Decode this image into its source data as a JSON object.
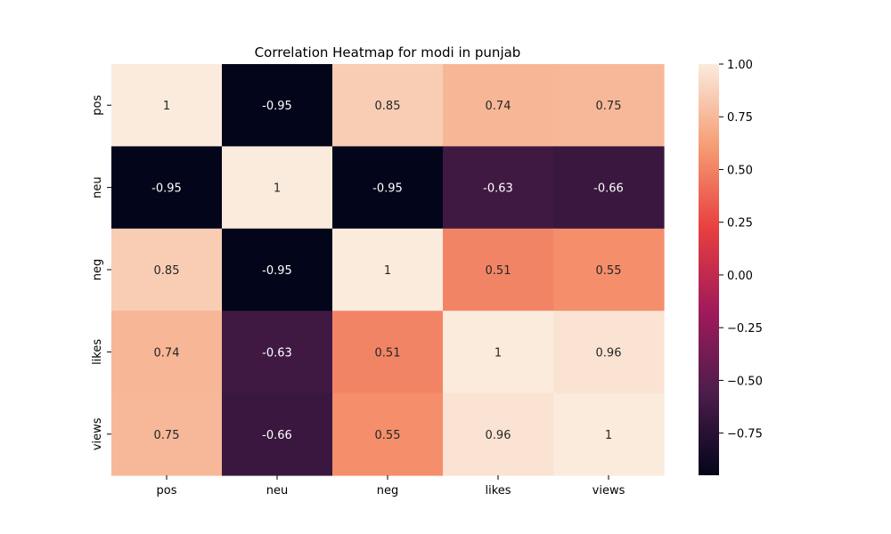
{
  "chart_data": {
    "type": "heatmap",
    "title": "Correlation Heatmap for modi in punjab",
    "x_labels": [
      "pos",
      "neu",
      "neg",
      "likes",
      "views"
    ],
    "y_labels": [
      "pos",
      "neu",
      "neg",
      "likes",
      "views"
    ],
    "values": [
      [
        1,
        -0.95,
        0.85,
        0.74,
        0.75
      ],
      [
        -0.95,
        1,
        -0.95,
        -0.63,
        -0.66
      ],
      [
        0.85,
        -0.95,
        1,
        0.51,
        0.55
      ],
      [
        0.74,
        -0.63,
        0.51,
        1,
        0.96
      ],
      [
        0.75,
        -0.66,
        0.55,
        0.96,
        1
      ]
    ],
    "cell_labels": [
      [
        "1",
        "-0.95",
        "0.85",
        "0.74",
        "0.75"
      ],
      [
        "-0.95",
        "1",
        "-0.95",
        "-0.63",
        "-0.66"
      ],
      [
        "0.85",
        "-0.95",
        "1",
        "0.51",
        "0.55"
      ],
      [
        "0.74",
        "-0.63",
        "0.51",
        "1",
        "0.96"
      ],
      [
        "0.75",
        "-0.66",
        "0.55",
        "0.96",
        "1"
      ]
    ],
    "colorbar": {
      "range": [
        -0.95,
        1.0
      ],
      "ticks": [
        1.0,
        0.75,
        0.5,
        0.25,
        0.0,
        -0.25,
        -0.5,
        -0.75
      ],
      "tick_labels": [
        "1.00",
        "0.75",
        "0.50",
        "0.25",
        "0.00",
        "−0.25",
        "−0.50",
        "−0.75"
      ],
      "colormap": [
        "#03051a",
        "#4c1d4b",
        "#a11a5b",
        "#e83f3f",
        "#f69c73",
        "#faebdd"
      ]
    },
    "legend": "none",
    "grid": false
  }
}
